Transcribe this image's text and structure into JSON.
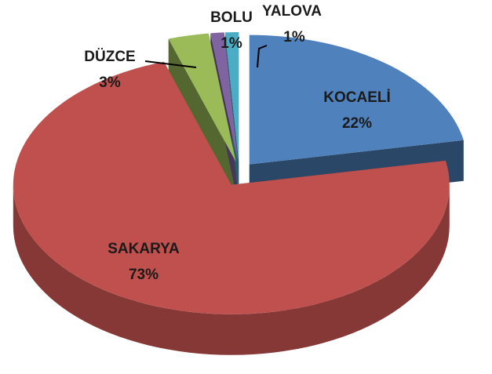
{
  "chart_data": {
    "type": "pie",
    "categories": [
      "KOCAELİ",
      "SAKARYA",
      "DÜZCE",
      "BOLU",
      "YALOVA"
    ],
    "values": [
      22,
      73,
      3,
      1,
      1
    ],
    "value_labels": [
      "22%",
      "73%",
      "3%",
      "1%",
      "1%"
    ],
    "colors": [
      "#4f81bd",
      "#c0504d",
      "#9bbb59",
      "#8064a2",
      "#4bacc6"
    ]
  }
}
